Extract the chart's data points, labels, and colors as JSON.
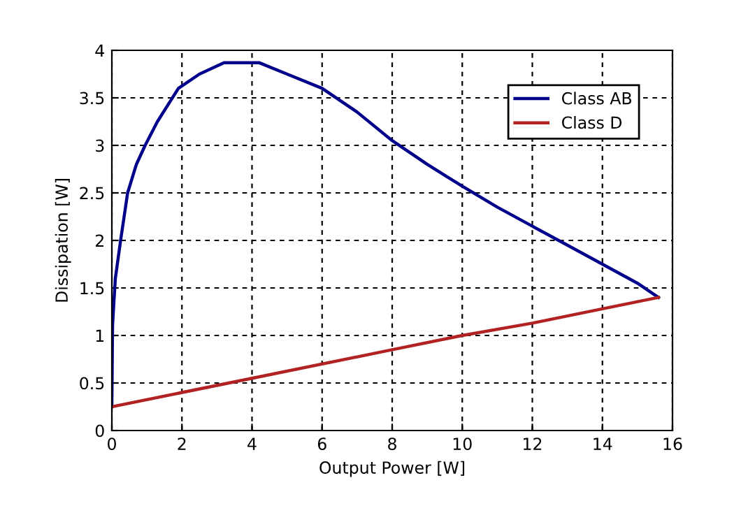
{
  "chart_data": {
    "type": "line",
    "xlabel": "Output Power [W]",
    "ylabel": "Dissipation [W]",
    "xlim": [
      0,
      16
    ],
    "ylim": [
      0,
      4
    ],
    "xticks": [
      0,
      2,
      4,
      6,
      8,
      10,
      12,
      14,
      16
    ],
    "yticks": [
      0,
      0.5,
      1,
      1.5,
      2,
      2.5,
      3,
      3.5,
      4
    ],
    "grid": true,
    "legend": "top right",
    "line_style": "solid",
    "marker": "none",
    "series": [
      {
        "name": "Class AB",
        "color": "#00008b",
        "x": [
          0,
          0.02,
          0.05,
          0.1,
          0.25,
          0.45,
          0.7,
          0.95,
          1.3,
          1.9,
          2.5,
          3.2,
          4.2,
          5,
          6,
          7,
          8,
          9,
          10,
          11,
          12,
          13,
          14,
          15,
          15.6
        ],
        "values": [
          0.25,
          1.1,
          1.3,
          1.6,
          2,
          2.5,
          2.8,
          3,
          3.25,
          3.6,
          3.75,
          3.87,
          3.87,
          3.75,
          3.6,
          3.35,
          3.05,
          2.8,
          2.57,
          2.35,
          2.15,
          1.95,
          1.75,
          1.55,
          1.4
        ]
      },
      {
        "name": "Class D",
        "color": "#b22222",
        "x": [
          0,
          4,
          8,
          10,
          12,
          14,
          15.6
        ],
        "values": [
          0.25,
          0.55,
          0.85,
          1.0,
          1.13,
          1.28,
          1.4
        ]
      }
    ]
  }
}
